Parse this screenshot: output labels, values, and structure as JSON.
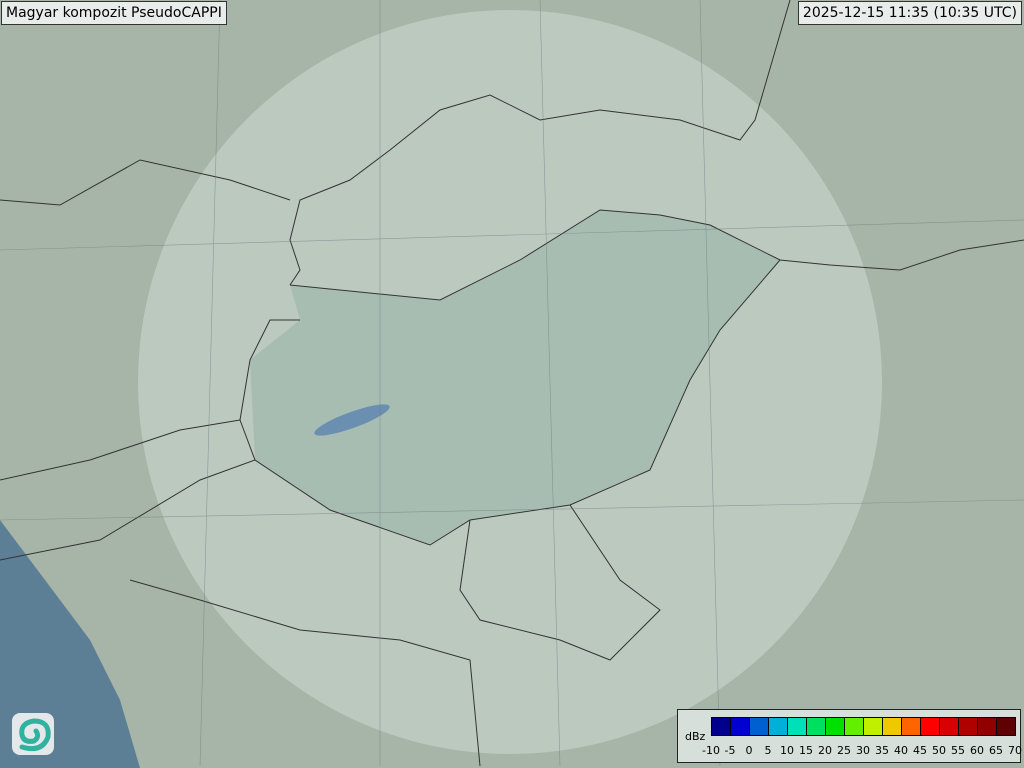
{
  "header": {
    "title": "Magyar kompozit  PseudoCAPPI",
    "timestamp": "2025-12-15 11:35 (10:35 UTC)"
  },
  "legend": {
    "unit": "dBz",
    "ticks": [
      "-10",
      "-5",
      "0",
      "5",
      "10",
      "15",
      "20",
      "25",
      "30",
      "35",
      "40",
      "45",
      "50",
      "55",
      "60",
      "65",
      "70"
    ],
    "colors": [
      "#00008c",
      "#0000d0",
      "#0060d0",
      "#00b0d8",
      "#00e0b8",
      "#00e060",
      "#00e000",
      "#60f000",
      "#c0f000",
      "#f0c800",
      "#ff6400",
      "#ff0000",
      "#d80000",
      "#b00000",
      "#900000",
      "#600000"
    ]
  },
  "logo": {
    "icon": "swirl-logo-icon"
  }
}
